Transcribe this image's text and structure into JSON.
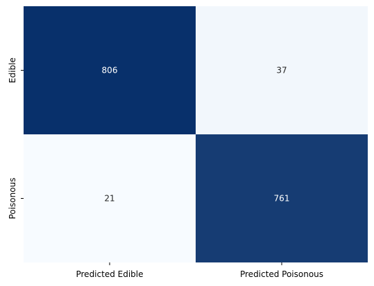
{
  "chart_data": {
    "type": "heatmap",
    "title": "",
    "xlabel": "",
    "ylabel": "",
    "x_categories": [
      "Predicted Edible",
      "Predicted Poisonous"
    ],
    "y_categories": [
      "Edible",
      "Poisonous"
    ],
    "values": [
      [
        806,
        37
      ],
      [
        21,
        761
      ]
    ],
    "colormap": "Blues",
    "colorbar": false,
    "grid": false,
    "colors": {
      "low": "#f7fbff",
      "high": "#08306b",
      "text_on_dark": "#ffffff",
      "text_on_light": "#262626"
    }
  }
}
